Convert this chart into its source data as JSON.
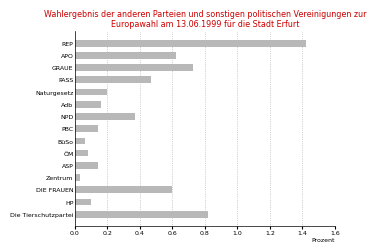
{
  "title": "Wahlergebnis der anderen Parteien und sonstigen politischen Vereinigungen zur\nEuropawahl am 13.06.1999 für die Stadt Erfurt",
  "title_color": "#cc0000",
  "xlabel": "Prozent",
  "categories": [
    "REP",
    "APO",
    "GRAUE",
    "PASS",
    "Naturgesetz",
    "Adb",
    "NPD",
    "PBC",
    "BüSo",
    "ÖM",
    "ASP",
    "Zentrum",
    "DIE FRAUEN",
    "HP",
    "Die Tierschutzpartei"
  ],
  "values": [
    1.42,
    0.62,
    0.73,
    0.47,
    0.2,
    0.16,
    0.37,
    0.14,
    0.06,
    0.08,
    0.14,
    0.03,
    0.6,
    0.1,
    0.82
  ],
  "bar_color": "#b8b8b8",
  "xlim": [
    0.0,
    1.6
  ],
  "xticks": [
    0.0,
    0.2,
    0.4,
    0.6,
    0.8,
    1.0,
    1.2,
    1.4,
    1.6
  ],
  "background_color": "#ffffff",
  "grid_color": "#aaaaaa",
  "tick_fontsize": 4.5,
  "label_fontsize": 4.5,
  "title_fontsize": 5.8
}
